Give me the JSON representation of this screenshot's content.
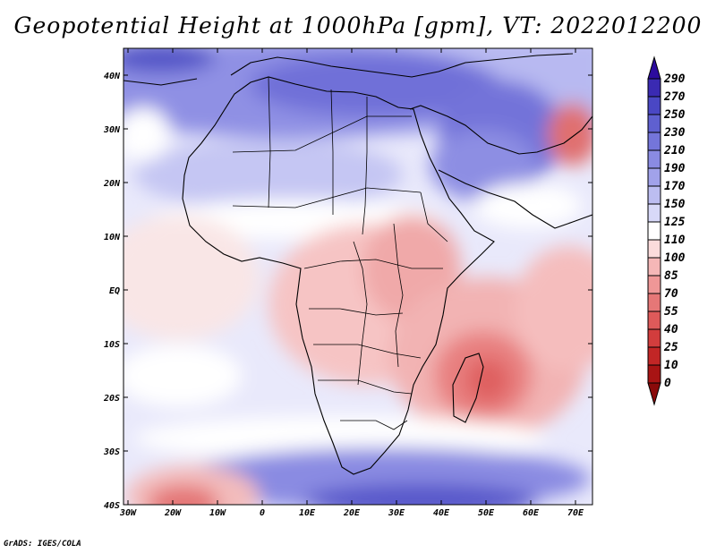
{
  "title": "Geopotential Height at 1000hPa [gpm], VT: 2022012200",
  "footer": "GrADS: IGES/COLA",
  "map": {
    "region": "Africa",
    "lon_range": [
      -30,
      75
    ],
    "lat_range": [
      -40,
      45
    ],
    "lon_ticks": [
      "30W",
      "20W",
      "10W",
      "0",
      "10E",
      "20E",
      "30E",
      "40E",
      "50E",
      "60E",
      "70E"
    ],
    "lat_ticks": [
      "40N",
      "30N",
      "20N",
      "10N",
      "EQ",
      "10S",
      "20S",
      "30S",
      "40S"
    ]
  },
  "colorbar": {
    "labels": [
      "290",
      "270",
      "250",
      "230",
      "210",
      "190",
      "170",
      "150",
      "125",
      "110",
      "100",
      "85",
      "70",
      "55",
      "40",
      "25",
      "10",
      "0"
    ],
    "colors": [
      "#2c0b9e",
      "#3a2ab2",
      "#4a47c4",
      "#5f60d0",
      "#7475da",
      "#8a8be2",
      "#a1a2ea",
      "#bcbdf1",
      "#d8d9f8",
      "#ffffff",
      "#fbdcdc",
      "#f5b7b7",
      "#ef9797",
      "#e67777",
      "#de5a5a",
      "#d23d3d",
      "#c22626",
      "#a81414",
      "#8a0a0a"
    ]
  }
}
